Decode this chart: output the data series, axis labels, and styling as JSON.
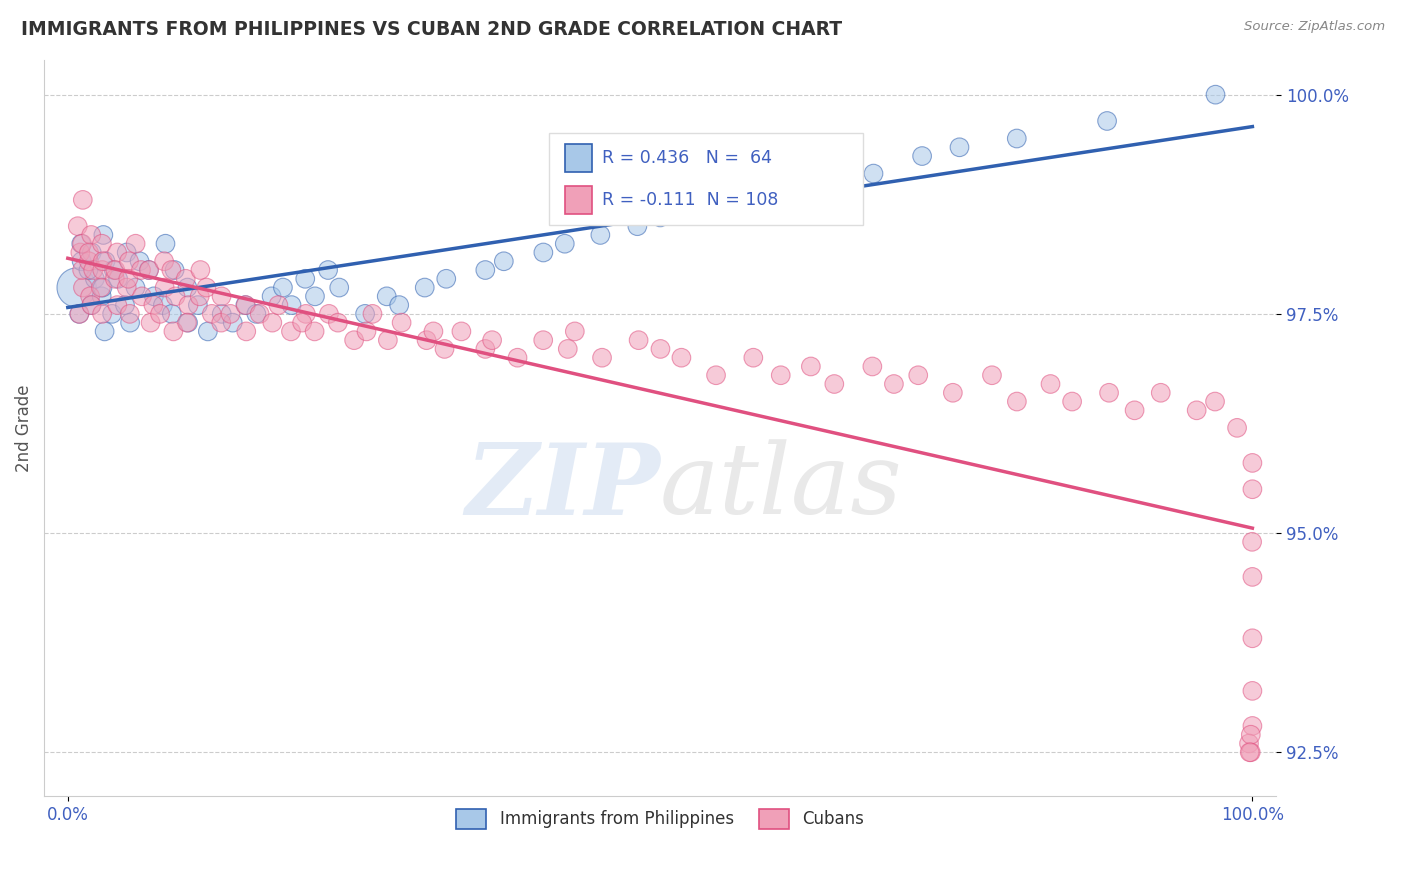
{
  "title": "IMMIGRANTS FROM PHILIPPINES VS CUBAN 2ND GRADE CORRELATION CHART",
  "source": "Source: ZipAtlas.com",
  "xlabel_bottom": "Immigrants from Philippines",
  "xlabel_cubans": "Cubans",
  "ylabel": "2nd Grade",
  "r_philippines": 0.436,
  "n_philippines": 64,
  "r_cubans": -0.111,
  "n_cubans": 108,
  "xlim": [
    0.0,
    100.0
  ],
  "ylim": [
    92.0,
    100.4
  ],
  "yticks": [
    92.5,
    95.0,
    97.5,
    100.0
  ],
  "ytick_labels": [
    "92.5%",
    "95.0%",
    "97.5%",
    "100.0%"
  ],
  "xtick_labels": [
    "0.0%",
    "100.0%"
  ],
  "color_philippines": "#a8c8e8",
  "color_cubans": "#f0a0b8",
  "color_philippines_line": "#3060b0",
  "color_cubans_line": "#e05080",
  "title_color": "#333333",
  "axis_label_color": "#4060c0",
  "background_color": "#ffffff",
  "phil_x": [
    1,
    1,
    1,
    1,
    2,
    2,
    2,
    2,
    3,
    3,
    3,
    3,
    3,
    4,
    4,
    4,
    5,
    5,
    5,
    6,
    6,
    7,
    7,
    8,
    8,
    9,
    9,
    10,
    10,
    11,
    12,
    13,
    14,
    15,
    16,
    17,
    18,
    19,
    20,
    21,
    22,
    23,
    25,
    27,
    28,
    30,
    32,
    35,
    37,
    40,
    42,
    45,
    48,
    50,
    55,
    58,
    62,
    65,
    68,
    72,
    75,
    80,
    88,
    97
  ],
  "phil_y": [
    97.8,
    98.1,
    97.5,
    98.3,
    97.9,
    98.2,
    97.6,
    98.0,
    97.7,
    98.4,
    97.3,
    98.1,
    97.8,
    97.5,
    98.0,
    97.9,
    97.6,
    98.2,
    97.4,
    97.8,
    98.1,
    97.7,
    98.0,
    97.6,
    98.3,
    97.5,
    98.0,
    97.4,
    97.8,
    97.6,
    97.3,
    97.5,
    97.4,
    97.6,
    97.5,
    97.7,
    97.8,
    97.6,
    97.9,
    97.7,
    98.0,
    97.8,
    97.5,
    97.7,
    97.6,
    97.8,
    97.9,
    98.0,
    98.1,
    98.2,
    98.3,
    98.4,
    98.5,
    98.6,
    98.7,
    98.8,
    98.9,
    99.0,
    99.1,
    99.3,
    99.4,
    99.5,
    99.7,
    100.0
  ],
  "cub_x": [
    1,
    1,
    1,
    1,
    1,
    1,
    1,
    2,
    2,
    2,
    2,
    2,
    2,
    3,
    3,
    3,
    3,
    3,
    4,
    4,
    4,
    4,
    5,
    5,
    5,
    5,
    6,
    6,
    6,
    7,
    7,
    7,
    8,
    8,
    8,
    9,
    9,
    9,
    10,
    10,
    10,
    11,
    11,
    12,
    12,
    13,
    13,
    14,
    15,
    15,
    16,
    17,
    18,
    19,
    20,
    20,
    21,
    22,
    23,
    24,
    25,
    26,
    27,
    28,
    30,
    31,
    32,
    33,
    35,
    36,
    38,
    40,
    42,
    43,
    45,
    48,
    50,
    52,
    55,
    58,
    60,
    63,
    65,
    68,
    70,
    72,
    75,
    78,
    80,
    83,
    85,
    88,
    90,
    92,
    95,
    97,
    99,
    100,
    100,
    100,
    100,
    100,
    100,
    100,
    100,
    100,
    100,
    100
  ],
  "cub_y": [
    98.2,
    98.5,
    97.8,
    98.8,
    98.0,
    97.5,
    98.3,
    98.1,
    97.7,
    98.4,
    98.0,
    97.6,
    98.2,
    98.0,
    97.5,
    98.3,
    97.8,
    98.1,
    97.9,
    98.2,
    97.6,
    98.0,
    97.8,
    98.1,
    97.5,
    97.9,
    98.0,
    97.7,
    98.3,
    97.6,
    98.0,
    97.4,
    97.8,
    98.1,
    97.5,
    97.7,
    98.0,
    97.3,
    97.6,
    97.9,
    97.4,
    97.7,
    98.0,
    97.5,
    97.8,
    97.4,
    97.7,
    97.5,
    97.6,
    97.3,
    97.5,
    97.4,
    97.6,
    97.3,
    97.5,
    97.4,
    97.3,
    97.5,
    97.4,
    97.2,
    97.3,
    97.5,
    97.2,
    97.4,
    97.2,
    97.3,
    97.1,
    97.3,
    97.1,
    97.2,
    97.0,
    97.2,
    97.1,
    97.3,
    97.0,
    97.2,
    97.1,
    97.0,
    96.8,
    97.0,
    96.8,
    96.9,
    96.7,
    96.9,
    96.7,
    96.8,
    96.6,
    96.8,
    96.5,
    96.7,
    96.5,
    96.6,
    96.4,
    96.6,
    96.4,
    96.5,
    96.2,
    95.8,
    95.5,
    94.9,
    94.5,
    93.8,
    93.2,
    92.8,
    92.6,
    92.5,
    92.7,
    92.5
  ]
}
